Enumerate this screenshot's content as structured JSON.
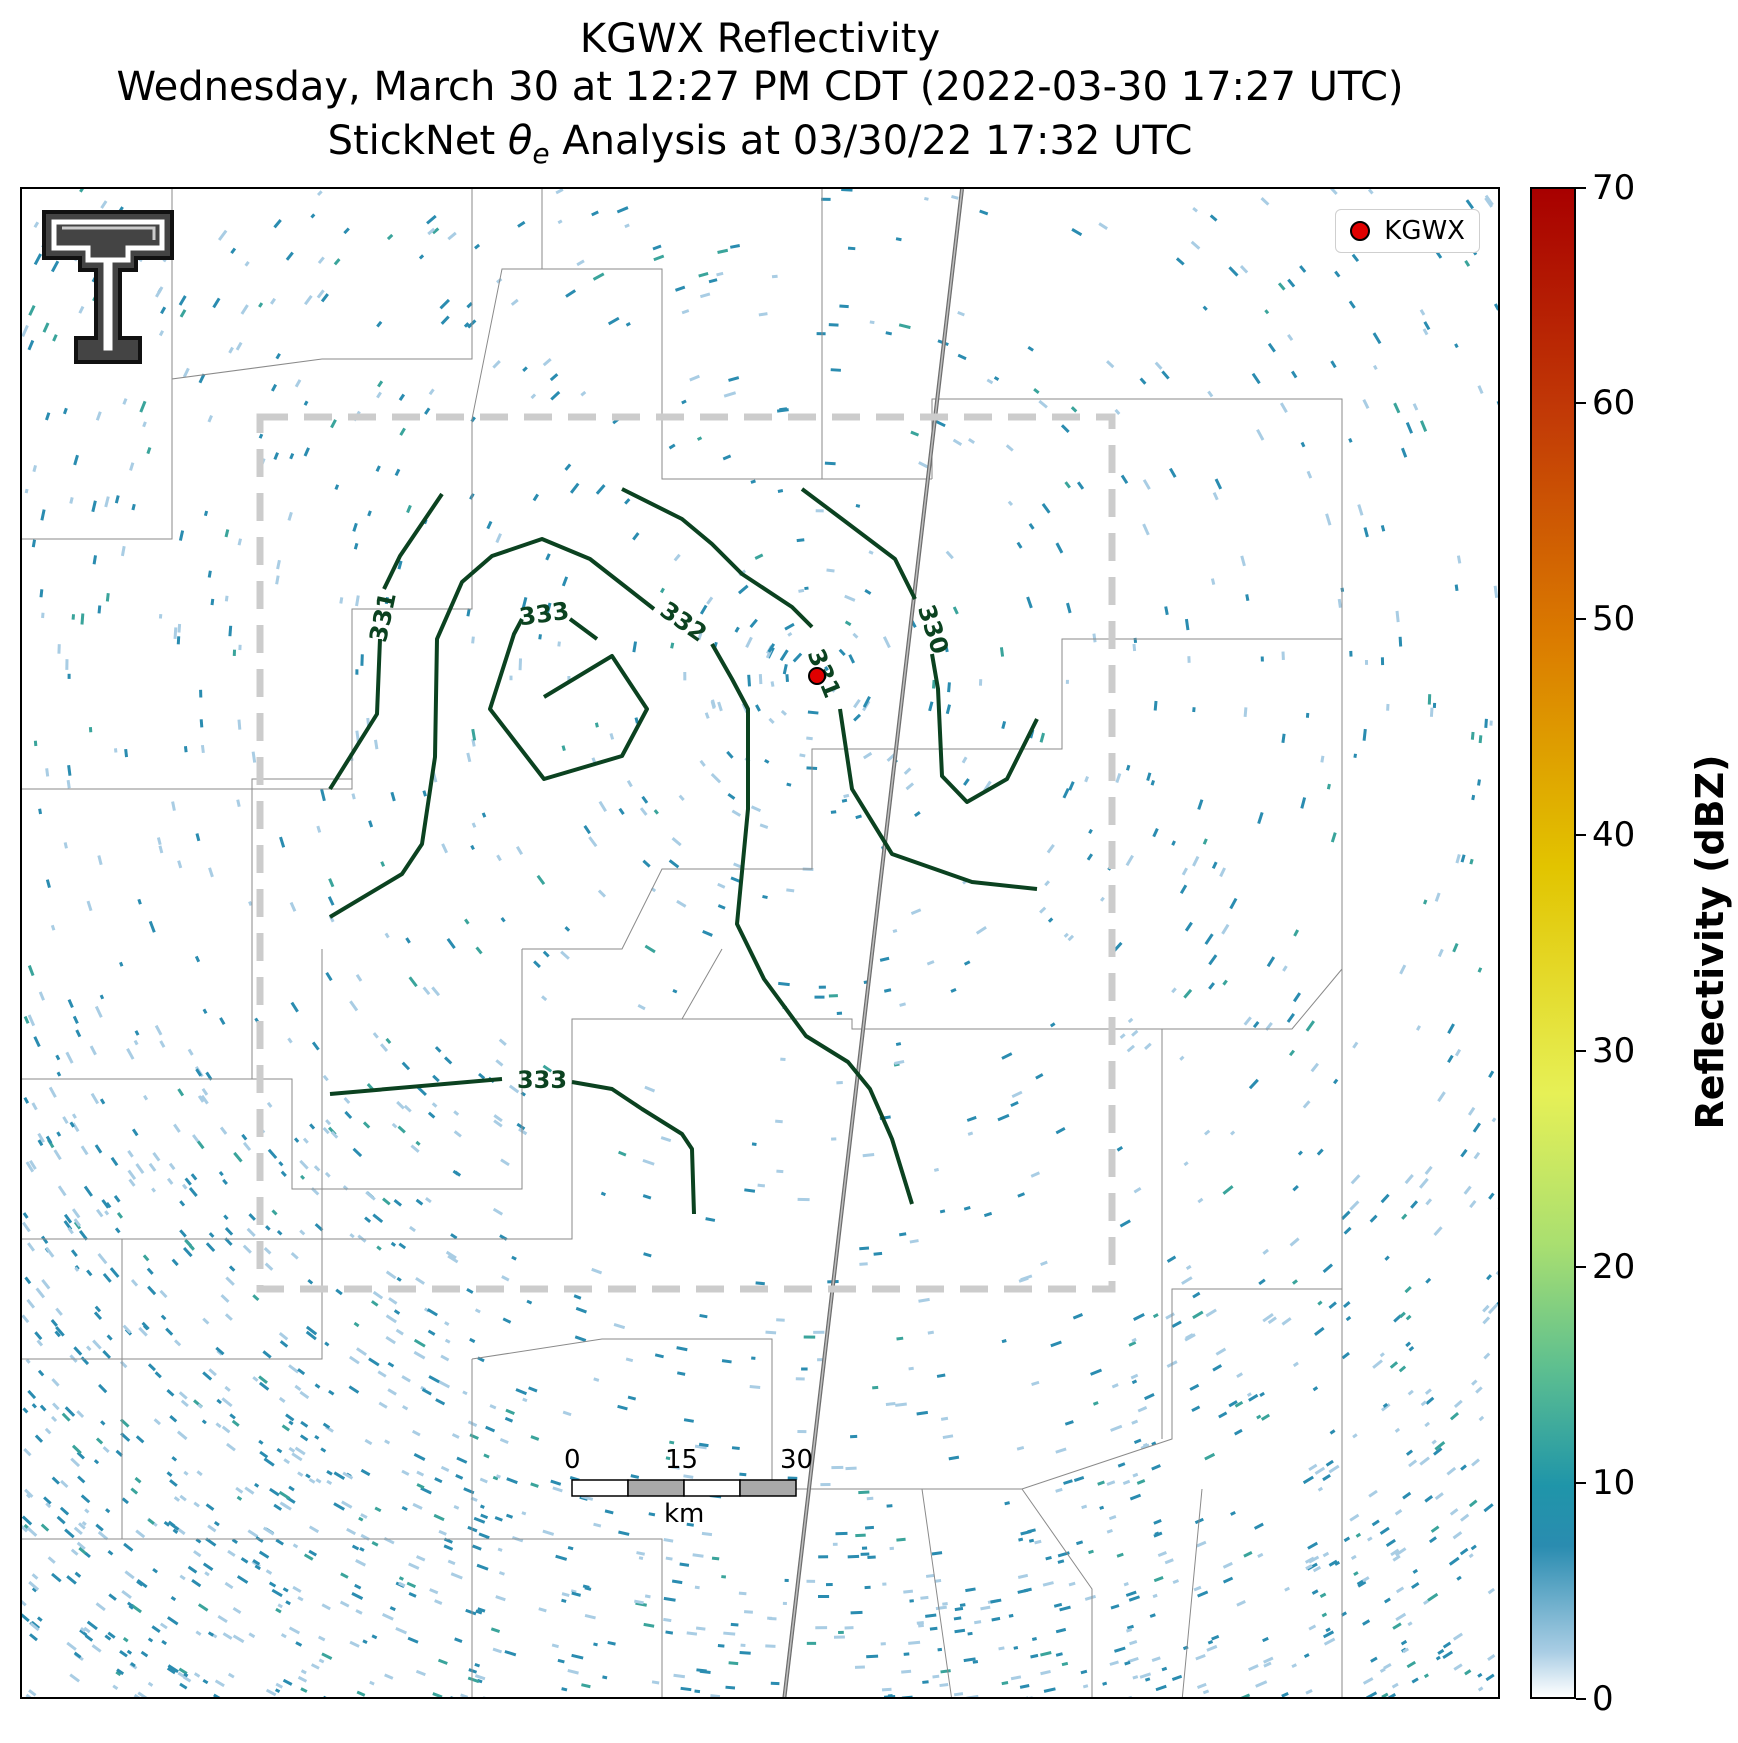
{
  "title": {
    "line1": "KGWX Reflectivity",
    "line2": "Wednesday, March 30 at 12:27 PM CDT (2022-03-30 17:27 UTC)",
    "line3_prefix": "StickNet ",
    "line3_symbol": "θ",
    "line3_subscript": "e",
    "line3_suffix": " Analysis at 03/30/22 17:32 UTC"
  },
  "legend": {
    "label": "KGWX",
    "marker_color": "#e00000"
  },
  "colorbar": {
    "label": "Reflectivity (dBZ)",
    "ticks": [
      "0",
      "10",
      "20",
      "30",
      "40",
      "50",
      "60",
      "70"
    ],
    "range": [
      0,
      70
    ],
    "colors": [
      "#ffffff",
      "#1f95a9",
      "#5fc08f",
      "#e6f056",
      "#e2c400",
      "#db7c00",
      "#a80000"
    ]
  },
  "contours": {
    "color": "#0b4220",
    "labels": [
      "331",
      "333",
      "332",
      "331",
      "330",
      "333"
    ]
  },
  "scale_bar": {
    "ticks": [
      "0",
      "15",
      "30"
    ],
    "unit": "km"
  },
  "colors": {
    "echo_light": "#a9cde4",
    "echo_main": "#2a8cb0",
    "echo_teal": "#3aa49b",
    "analysis_box": "#cccccc",
    "boundaries": "#8a8a8a"
  },
  "logo": {
    "name": "texas-tech-double-t"
  }
}
